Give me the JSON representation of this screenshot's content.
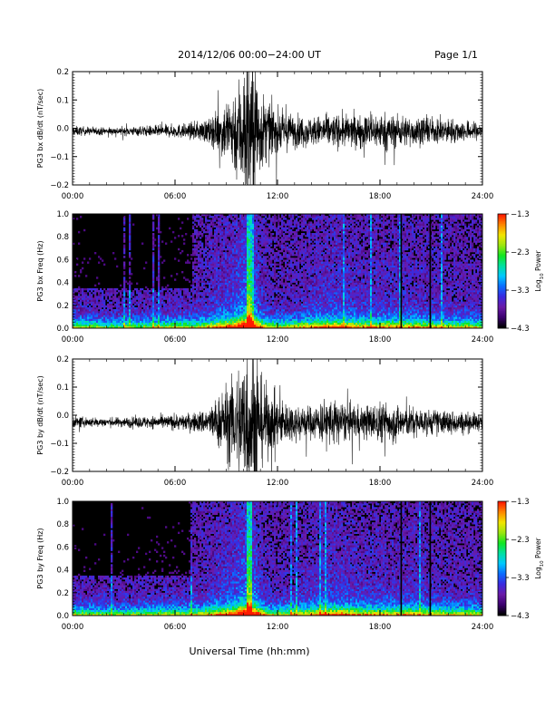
{
  "header": {
    "title": "2014/12/06  00:00−24:00 UT",
    "page": "Page 1/1"
  },
  "xlabel": "Universal Time (hh:mm)",
  "colorbar": {
    "label_main": "Log",
    "label_sub": "10",
    "label_tail": " Power",
    "ticks": [
      "−1.3",
      "−2.3",
      "−3.3",
      "−4.3"
    ],
    "colormap": [
      "#000000",
      "#3c0070",
      "#6a1aa8",
      "#3a2ae0",
      "#0b6cff",
      "#00c8ff",
      "#00e0a0",
      "#12e622",
      "#9be610",
      "#f2e600",
      "#ff8800",
      "#ff1a00"
    ]
  },
  "chart_data": [
    {
      "type": "line",
      "ylabel": "PG3 bx dB/dt (nT/sec)",
      "x_ticks": [
        "00:00",
        "06:00",
        "12:00",
        "18:00",
        "24:00"
      ],
      "x_range_hours": [
        0,
        24
      ],
      "y_ticks": [
        "0.2",
        "0.1",
        "0.0",
        "−0.1",
        "−0.2"
      ],
      "ylim": [
        -0.2,
        0.2
      ],
      "baseline": -0.01,
      "activity_envelope": {
        "hours": [
          0,
          1,
          2,
          3,
          4,
          5,
          6,
          7,
          8,
          8.5,
          9,
          9.5,
          10,
          10.3,
          10.6,
          11,
          11.5,
          12,
          13,
          14,
          15,
          16,
          17,
          18,
          19,
          20,
          21,
          22,
          23,
          24
        ],
        "amplitude": [
          0.012,
          0.01,
          0.009,
          0.01,
          0.012,
          0.014,
          0.016,
          0.02,
          0.03,
          0.05,
          0.08,
          0.11,
          0.16,
          0.22,
          0.2,
          0.1,
          0.07,
          0.05,
          0.04,
          0.035,
          0.04,
          0.04,
          0.04,
          0.045,
          0.04,
          0.035,
          0.03,
          0.03,
          0.025,
          0.02
        ]
      }
    },
    {
      "type": "heatmap",
      "ylabel": "PG3 bx Freq (Hz)",
      "x_ticks": [
        "00:00",
        "06:00",
        "12:00",
        "18:00",
        "24:00"
      ],
      "x_range_hours": [
        0,
        24
      ],
      "y_ticks": [
        "1.0",
        "0.8",
        "0.6",
        "0.4",
        "0.2",
        "0.0"
      ],
      "ylim": [
        0,
        1.0
      ],
      "color_range_log10_power": [
        -4.3,
        -1.3
      ]
    },
    {
      "type": "line",
      "ylabel": "PG3 by dB/dt (nT/sec)",
      "x_ticks": [
        "00:00",
        "06:00",
        "12:00",
        "18:00",
        "24:00"
      ],
      "x_range_hours": [
        0,
        24
      ],
      "y_ticks": [
        "0.2",
        "0.1",
        "0.0",
        "−0.1",
        "−0.2"
      ],
      "ylim": [
        -0.2,
        0.2
      ],
      "baseline": -0.025,
      "activity_envelope": {
        "hours": [
          0,
          1,
          2,
          3,
          4,
          5,
          6,
          7,
          8,
          8.5,
          9,
          9.5,
          10,
          10.3,
          10.6,
          11,
          11.5,
          12,
          13,
          14,
          15,
          16,
          17,
          18,
          19,
          20,
          21,
          22,
          23,
          24
        ],
        "amplitude": [
          0.014,
          0.012,
          0.011,
          0.012,
          0.014,
          0.016,
          0.018,
          0.022,
          0.035,
          0.06,
          0.09,
          0.12,
          0.17,
          0.22,
          0.2,
          0.11,
          0.08,
          0.06,
          0.045,
          0.04,
          0.06,
          0.045,
          0.04,
          0.05,
          0.045,
          0.035,
          0.03,
          0.03,
          0.025,
          0.02
        ]
      }
    },
    {
      "type": "heatmap",
      "ylabel": "PG3 by Freq (Hz)",
      "x_ticks": [
        "00:00",
        "06:00",
        "12:00",
        "18:00",
        "24:00"
      ],
      "x_range_hours": [
        0,
        24
      ],
      "y_ticks": [
        "1.0",
        "0.8",
        "0.6",
        "0.4",
        "0.2",
        "0.0"
      ],
      "ylim": [
        0,
        1.0
      ],
      "color_range_log10_power": [
        -4.3,
        -1.3
      ]
    }
  ]
}
